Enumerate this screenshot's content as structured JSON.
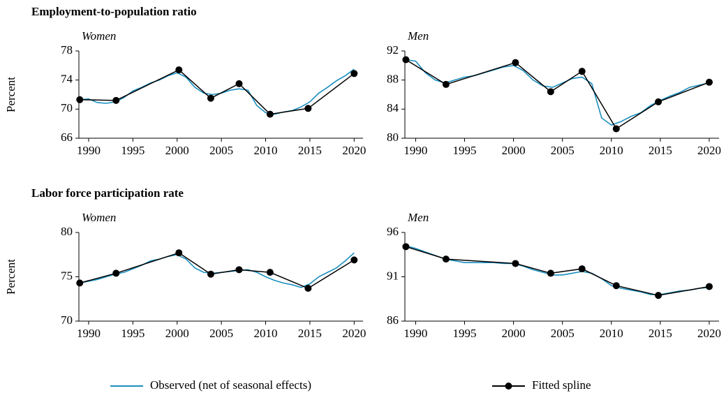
{
  "chart_data": [
    {
      "type": "line",
      "title": "Employment-to-population ratio",
      "subtitle": "Women",
      "ylabel": "Percent",
      "xlim": [
        1988.9,
        2021
      ],
      "xticks": [
        1990,
        1995,
        2000,
        2005,
        2010,
        2015,
        2020
      ],
      "ylim": [
        66,
        78
      ],
      "yticks": [
        66,
        70,
        74,
        78
      ],
      "legend": "bottom",
      "series": [
        {
          "name": "Observed (net of seasonal effects)",
          "color": "#1a8fbf",
          "x": [
            1989,
            1990,
            1991,
            1992,
            1993,
            1994,
            1995,
            1996,
            1997,
            1998,
            1999,
            2000,
            2001,
            2002,
            2003,
            2004,
            2005,
            2006,
            2007,
            2008,
            2009,
            2010,
            2011,
            2012,
            2013,
            2014,
            2015,
            2016,
            2017,
            2018,
            2019,
            2020
          ],
          "values": [
            71.3,
            71.4,
            70.9,
            70.8,
            71.0,
            71.6,
            72.5,
            73.0,
            73.6,
            74.0,
            74.6,
            75.0,
            74.4,
            73.0,
            72.2,
            72.0,
            72.2,
            72.6,
            72.8,
            72.6,
            70.5,
            69.5,
            69.3,
            69.6,
            69.8,
            70.3,
            71.0,
            72.2,
            73.0,
            73.9,
            74.6,
            75.5
          ]
        },
        {
          "name": "Fitted spline",
          "color": "#000000",
          "x": [
            1989,
            1993.1,
            2000.2,
            2003.8,
            2007,
            2010.5,
            2014.8,
            2020
          ],
          "values": [
            71.3,
            71.2,
            75.4,
            71.5,
            73.5,
            69.3,
            70.1,
            74.9
          ]
        }
      ]
    },
    {
      "type": "line",
      "subtitle": "Men",
      "xlim": [
        1988.9,
        2021
      ],
      "xticks": [
        1990,
        1995,
        2000,
        2005,
        2010,
        2015,
        2020
      ],
      "ylim": [
        80,
        92
      ],
      "yticks": [
        80,
        84,
        88,
        92
      ],
      "series": [
        {
          "color": "#1a8fbf",
          "x": [
            1989,
            1990,
            1991,
            1992,
            1993,
            1994,
            1995,
            1996,
            1997,
            1998,
            1999,
            2000,
            2001,
            2002,
            2003,
            2004,
            2005,
            2006,
            2007,
            2008,
            2009,
            2010,
            2011,
            2012,
            2013,
            2014,
            2015,
            2016,
            2017,
            2018,
            2019,
            2020
          ],
          "values": [
            90.8,
            90.6,
            89.0,
            88.0,
            87.6,
            88.0,
            88.4,
            88.6,
            89.0,
            89.4,
            89.8,
            90.0,
            89.3,
            88.0,
            87.2,
            87.0,
            87.6,
            88.2,
            88.4,
            87.5,
            82.8,
            81.8,
            82.3,
            83.0,
            83.5,
            84.5,
            85.2,
            85.8,
            86.3,
            87.0,
            87.3,
            87.6
          ]
        },
        {
          "color": "#000000",
          "x": [
            1989,
            1993.1,
            2000.2,
            2003.8,
            2007,
            2010.5,
            2014.8,
            2020
          ],
          "values": [
            90.8,
            87.4,
            90.4,
            86.4,
            89.2,
            81.3,
            85.0,
            87.7
          ]
        }
      ]
    },
    {
      "type": "line",
      "title": "Labor force participation rate",
      "subtitle": "Women",
      "ylabel": "Percent",
      "xlim": [
        1988.9,
        2021
      ],
      "xticks": [
        1990,
        1995,
        2000,
        2005,
        2010,
        2015,
        2020
      ],
      "ylim": [
        70,
        80
      ],
      "yticks": [
        70,
        75,
        80
      ],
      "series": [
        {
          "color": "#1a8fbf",
          "x": [
            1989,
            1990,
            1991,
            1992,
            1993,
            1994,
            1995,
            1996,
            1997,
            1998,
            1999,
            2000,
            2001,
            2002,
            2003,
            2004,
            2005,
            2006,
            2007,
            2008,
            2009,
            2010,
            2011,
            2012,
            2013,
            2014,
            2015,
            2016,
            2017,
            2018,
            2019,
            2020
          ],
          "values": [
            74.3,
            74.5,
            74.7,
            75.0,
            75.3,
            75.5,
            75.9,
            76.3,
            76.8,
            77.0,
            77.3,
            77.5,
            77.0,
            76.0,
            75.5,
            75.4,
            75.5,
            75.6,
            75.7,
            75.8,
            75.5,
            75.0,
            74.6,
            74.3,
            74.1,
            73.8,
            74.2,
            75.0,
            75.5,
            76.0,
            76.8,
            77.7
          ]
        },
        {
          "color": "#000000",
          "x": [
            1989,
            1993.1,
            2000.2,
            2003.8,
            2007,
            2010.5,
            2014.8,
            2020
          ],
          "values": [
            74.3,
            75.4,
            77.7,
            75.3,
            75.8,
            75.5,
            73.7,
            76.9
          ]
        }
      ]
    },
    {
      "type": "line",
      "subtitle": "Men",
      "xlim": [
        1988.9,
        2021
      ],
      "xticks": [
        1990,
        1995,
        2000,
        2005,
        2010,
        2015,
        2020
      ],
      "ylim": [
        86,
        96
      ],
      "yticks": [
        86,
        91,
        96
      ],
      "series": [
        {
          "color": "#1a8fbf",
          "x": [
            1989,
            1990,
            1991,
            1992,
            1993,
            1994,
            1995,
            1996,
            1997,
            1998,
            1999,
            2000,
            2001,
            2002,
            2003,
            2004,
            2005,
            2006,
            2007,
            2008,
            2009,
            2010,
            2011,
            2012,
            2013,
            2014,
            2015,
            2016,
            2017,
            2018,
            2019,
            2020
          ],
          "values": [
            94.5,
            94.2,
            93.8,
            93.4,
            93.0,
            92.8,
            92.6,
            92.6,
            92.6,
            92.6,
            92.5,
            92.5,
            92.2,
            91.8,
            91.5,
            91.2,
            91.2,
            91.4,
            91.6,
            91.4,
            90.8,
            90.0,
            89.7,
            89.5,
            89.3,
            89.0,
            89.0,
            89.2,
            89.4,
            89.5,
            89.7,
            89.8
          ]
        },
        {
          "color": "#000000",
          "x": [
            1989,
            1993.1,
            2000.2,
            2003.8,
            2007,
            2010.5,
            2014.8,
            2020
          ],
          "values": [
            94.4,
            93.0,
            92.5,
            91.4,
            91.9,
            90.0,
            88.9,
            89.9
          ]
        }
      ]
    }
  ]
}
